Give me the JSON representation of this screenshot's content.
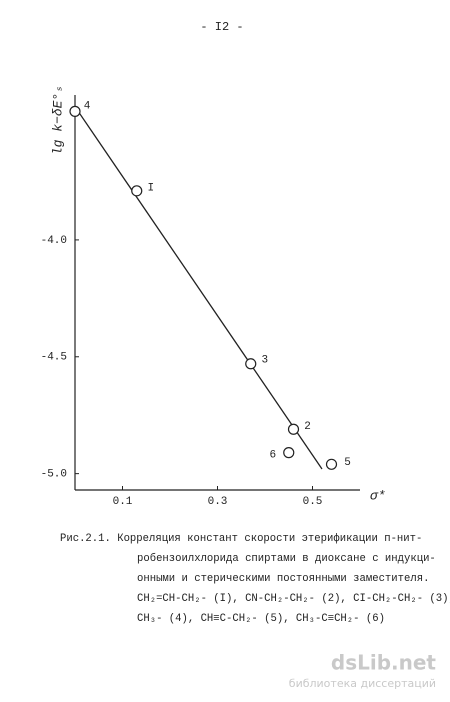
{
  "header": {
    "page_number": "- I2 -"
  },
  "chart_data": {
    "type": "scatter",
    "ylabel": "lg k−δE°ₛ",
    "xlabel": "σ*",
    "xlim": [
      0,
      0.6
    ],
    "ylim": [
      -5.07,
      -3.38
    ],
    "xticks": [
      0.1,
      0.3,
      0.5
    ],
    "yticks": [
      {
        "value": -4,
        "label": "-4.0"
      },
      -4.5,
      {
        "value": -5,
        "label": "-5.0"
      }
    ],
    "points": {
      "x": [
        0.0,
        0.13,
        0.37,
        0.46,
        0.45,
        0.54
      ],
      "y": [
        -3.45,
        -3.79,
        -4.53,
        -4.81,
        -4.91,
        -4.96
      ],
      "labels": [
        "4",
        "I",
        "3",
        "2",
        "6",
        "5"
      ]
    },
    "fit_line": {
      "x": [
        0.0,
        0.52
      ],
      "y": [
        -3.43,
        -4.98
      ]
    }
  },
  "caption": {
    "lines": [
      "Рис.2.1. Корреляция констант скорости этерификации п-нит-",
      "робензоилхлорида спиртами в диоксане с индукци-",
      "онными и стерическими постоянными заместителя.",
      "CH₂=CH-CH₂- (I), CN-CH₂-CH₂- (2), CI-CH₂-CH₂- (3),",
      "CH₃- (4), CH≡C-CH₂- (5), CH₃-C≡CH₂- (6)"
    ]
  },
  "watermark": {
    "site": "dsLib.net",
    "tagline": "библиотека диссертаций"
  }
}
